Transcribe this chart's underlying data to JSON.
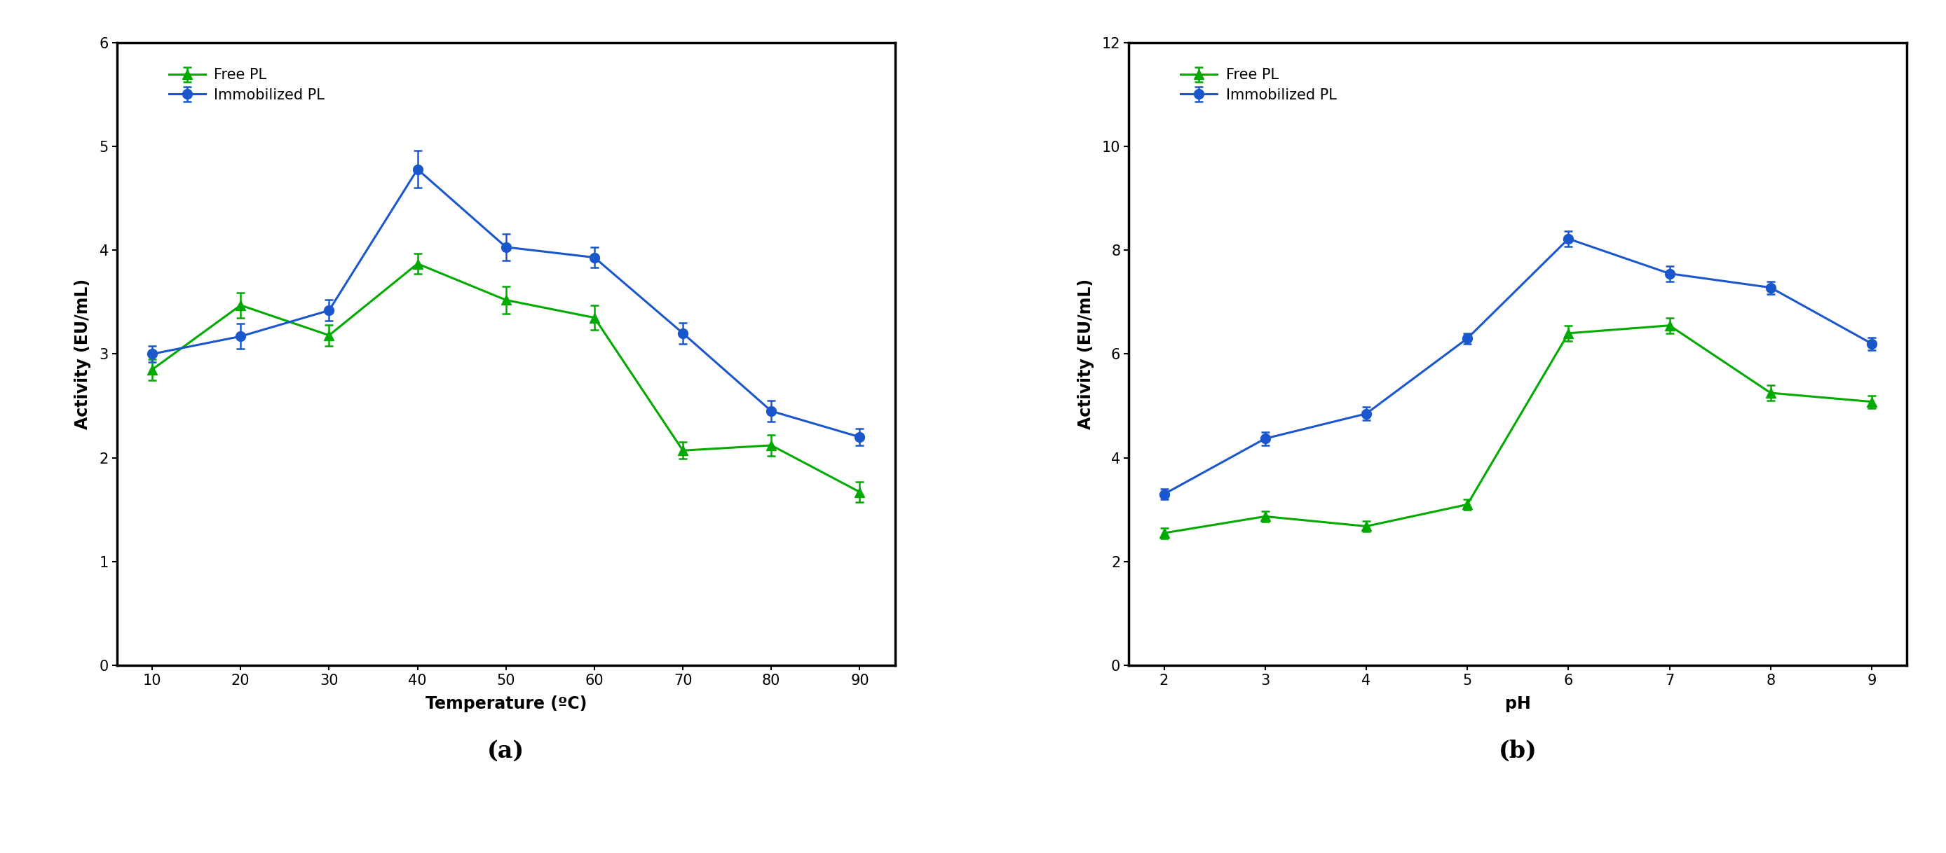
{
  "panel_a": {
    "xlabel": "Temperature (ºC)",
    "ylabel": "Activity (EU/mL)",
    "label_caption": "(a)",
    "ylim": [
      0,
      6
    ],
    "yticks": [
      0,
      1,
      2,
      3,
      4,
      5,
      6
    ],
    "x": [
      10,
      20,
      30,
      40,
      50,
      60,
      70,
      80,
      90
    ],
    "free_y": [
      2.85,
      3.47,
      3.18,
      3.87,
      3.52,
      3.35,
      2.07,
      2.12,
      1.67
    ],
    "free_err": [
      0.1,
      0.12,
      0.1,
      0.1,
      0.13,
      0.12,
      0.08,
      0.1,
      0.1
    ],
    "immob_y": [
      3.0,
      3.17,
      3.42,
      4.78,
      4.03,
      3.93,
      3.2,
      2.45,
      2.2
    ],
    "immob_err": [
      0.08,
      0.12,
      0.1,
      0.18,
      0.13,
      0.1,
      0.1,
      0.1,
      0.08
    ]
  },
  "panel_b": {
    "xlabel": "pH",
    "ylabel": "Activity (EU/mL)",
    "label_caption": "(b)",
    "ylim": [
      0,
      12
    ],
    "yticks": [
      0,
      2,
      4,
      6,
      8,
      10,
      12
    ],
    "x": [
      2,
      3,
      4,
      5,
      6,
      7,
      8,
      9
    ],
    "free_y": [
      2.55,
      2.87,
      2.68,
      3.1,
      6.4,
      6.55,
      5.25,
      5.08
    ],
    "free_err": [
      0.1,
      0.1,
      0.1,
      0.1,
      0.15,
      0.15,
      0.15,
      0.12
    ],
    "immob_y": [
      3.3,
      4.37,
      4.85,
      6.3,
      8.22,
      7.55,
      7.28,
      6.2
    ],
    "immob_err": [
      0.1,
      0.13,
      0.13,
      0.1,
      0.15,
      0.15,
      0.12,
      0.12
    ]
  },
  "free_color": "#00aa00",
  "immob_color": "#1a56cc",
  "free_label": "Free PL",
  "immob_label": "Immobilized PL",
  "legend_fontsize": 15,
  "axis_label_fontsize": 17,
  "tick_fontsize": 15,
  "caption_fontsize": 24,
  "linewidth": 2.2,
  "markersize": 10,
  "elinewidth": 1.8,
  "capsize": 4,
  "spine_linewidth": 2.5
}
